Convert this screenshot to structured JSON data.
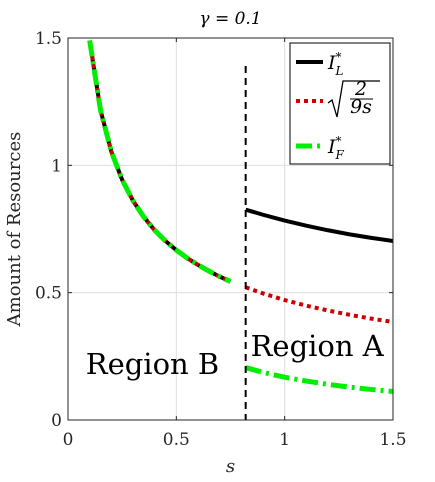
{
  "chart_data": {
    "type": "line",
    "title": "γ = 0.1",
    "xlabel": "s",
    "ylabel": "Amount of Resources",
    "xlim": [
      0,
      1.5
    ],
    "ylim": [
      0,
      1.5
    ],
    "xticks": [
      "0",
      "0.5",
      "1",
      "1.5"
    ],
    "yticks": [
      "0",
      "0.5",
      "1",
      "1.5"
    ],
    "grid": true,
    "legend_position": "top-right",
    "region_threshold_s": 0.82,
    "annotations": [
      {
        "text": "Region B",
        "x": 0.39,
        "y": 0.22
      },
      {
        "text": "Region A",
        "x": 1.15,
        "y": 0.29
      }
    ],
    "series": [
      {
        "name": "I*_L",
        "legend_label": "I",
        "legend_sup": "*",
        "legend_sub": "L",
        "color": "#000000",
        "style": "solid",
        "x": [
          0.1,
          0.15,
          0.2,
          0.25,
          0.3,
          0.35,
          0.4,
          0.45,
          0.5,
          0.55,
          0.6,
          0.65,
          0.7,
          0.75,
          0.82,
          0.9,
          1.0,
          1.1,
          1.2,
          1.3,
          1.4,
          1.5
        ],
        "y": [
          1.49,
          1.217,
          1.054,
          0.943,
          0.861,
          0.797,
          0.745,
          0.703,
          0.667,
          0.636,
          0.609,
          0.585,
          0.563,
          0.544,
          0.826,
          0.806,
          0.783,
          0.763,
          0.745,
          0.729,
          0.715,
          0.703
        ]
      },
      {
        "name": "sqrt(2/(9s))",
        "legend_label": "2/9s",
        "color": "#cc0000",
        "style": "dotted",
        "x": [
          0.1,
          0.15,
          0.2,
          0.25,
          0.3,
          0.35,
          0.4,
          0.45,
          0.5,
          0.55,
          0.6,
          0.65,
          0.7,
          0.75,
          0.82,
          0.9,
          1.0,
          1.1,
          1.2,
          1.3,
          1.4,
          1.5
        ],
        "y": [
          1.49,
          1.217,
          1.054,
          0.943,
          0.861,
          0.797,
          0.745,
          0.703,
          0.667,
          0.636,
          0.609,
          0.585,
          0.563,
          0.544,
          0.521,
          0.497,
          0.471,
          0.449,
          0.43,
          0.413,
          0.398,
          0.385
        ]
      },
      {
        "name": "I*_F",
        "legend_label": "I",
        "legend_sup": "*",
        "legend_sub": "F",
        "color": "#00ee00",
        "style": "dashdot",
        "x": [
          0.1,
          0.15,
          0.2,
          0.25,
          0.3,
          0.35,
          0.4,
          0.45,
          0.5,
          0.55,
          0.6,
          0.65,
          0.7,
          0.75,
          0.82,
          0.9,
          1.0,
          1.1,
          1.2,
          1.3,
          1.4,
          1.5
        ],
        "y": [
          1.49,
          1.217,
          1.054,
          0.943,
          0.861,
          0.797,
          0.745,
          0.703,
          0.667,
          0.636,
          0.609,
          0.585,
          0.563,
          0.544,
          0.206,
          0.187,
          0.168,
          0.153,
          0.14,
          0.129,
          0.12,
          0.112
        ]
      }
    ]
  }
}
